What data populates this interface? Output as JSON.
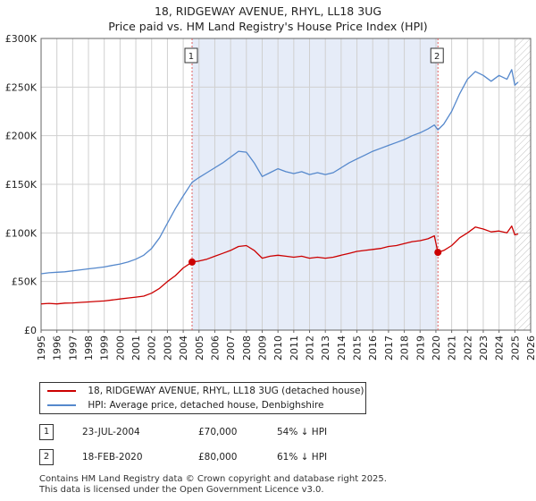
{
  "chart_data": {
    "type": "line",
    "title": "18, RIDGEWAY AVENUE, RHYL, LL18 3UG",
    "subtitle": "Price paid vs. HM Land Registry's House Price Index (HPI)",
    "xlim": [
      1995,
      2026
    ],
    "ylim": [
      0,
      300000
    ],
    "x_ticks": [
      "1995",
      "1996",
      "1997",
      "1998",
      "1999",
      "2000",
      "2001",
      "2002",
      "2003",
      "2004",
      "2005",
      "2006",
      "2007",
      "2008",
      "2009",
      "2010",
      "2011",
      "2012",
      "2013",
      "2014",
      "2015",
      "2016",
      "2017",
      "2018",
      "2019",
      "2020",
      "2021",
      "2022",
      "2023",
      "2024",
      "2025",
      "2026"
    ],
    "y_ticks": [
      {
        "value": 0,
        "label": "£0"
      },
      {
        "value": 50000,
        "label": "£50K"
      },
      {
        "value": 100000,
        "label": "£100K"
      },
      {
        "value": 150000,
        "label": "£150K"
      },
      {
        "value": 200000,
        "label": "£200K"
      },
      {
        "value": 250000,
        "label": "£250K"
      },
      {
        "value": 300000,
        "label": "£300K"
      }
    ],
    "grid": true,
    "shaded_span": [
      2004.56,
      2020.13
    ],
    "forecast_hatch_from": 2025.0,
    "series": [
      {
        "name": "18, RIDGEWAY AVENUE, RHYL, LL18 3UG (detached house)",
        "color": "#cc0000",
        "x": [
          1995,
          1995.5,
          1996,
          1996.5,
          1997,
          1997.5,
          1998,
          1998.5,
          1999,
          1999.5,
          2000,
          2000.5,
          2001,
          2001.5,
          2002,
          2002.5,
          2003,
          2003.5,
          2004,
          2004.56,
          2005,
          2005.5,
          2006,
          2006.5,
          2007,
          2007.5,
          2008,
          2008.5,
          2009,
          2009.5,
          2010,
          2010.5,
          2011,
          2011.5,
          2012,
          2012.5,
          2013,
          2013.5,
          2014,
          2014.5,
          2015,
          2015.5,
          2016,
          2016.5,
          2017,
          2017.5,
          2018,
          2018.5,
          2019,
          2019.5,
          2019.9,
          2020.13,
          2020.5,
          2021,
          2021.5,
          2022,
          2022.5,
          2023,
          2023.5,
          2024,
          2024.5,
          2024.8,
          2025,
          2025.2
        ],
        "values": [
          27000,
          27500,
          27000,
          27800,
          28000,
          28500,
          29000,
          29500,
          30000,
          31000,
          32000,
          33000,
          34000,
          35000,
          38000,
          43000,
          50000,
          56000,
          64000,
          70000,
          71000,
          73000,
          76000,
          79000,
          82000,
          86000,
          87000,
          82000,
          74000,
          76000,
          77000,
          76000,
          75000,
          76000,
          74000,
          75000,
          74000,
          75000,
          77000,
          79000,
          81000,
          82000,
          83000,
          84000,
          86000,
          87000,
          89000,
          91000,
          92000,
          94000,
          97000,
          80000,
          82000,
          87000,
          95000,
          100000,
          106000,
          104000,
          101000,
          102000,
          100000,
          107000,
          98000,
          99000
        ]
      },
      {
        "name": "HPI: Average price, detached house, Denbighshire",
        "color": "#5588cc",
        "x": [
          1995,
          1995.5,
          1996,
          1996.5,
          1997,
          1997.5,
          1998,
          1998.5,
          1999,
          1999.5,
          2000,
          2000.5,
          2001,
          2001.5,
          2002,
          2002.5,
          2003,
          2003.5,
          2004,
          2004.56,
          2005,
          2005.5,
          2006,
          2006.5,
          2007,
          2007.5,
          2008,
          2008.5,
          2009,
          2009.5,
          2010,
          2010.5,
          2011,
          2011.5,
          2012,
          2012.5,
          2013,
          2013.5,
          2014,
          2014.5,
          2015,
          2015.5,
          2016,
          2016.5,
          2017,
          2017.5,
          2018,
          2018.5,
          2019,
          2019.5,
          2019.9,
          2020.13,
          2020.5,
          2021,
          2021.5,
          2022,
          2022.5,
          2023,
          2023.5,
          2024,
          2024.5,
          2024.8,
          2025,
          2025.2
        ],
        "values": [
          58000,
          59000,
          59500,
          60000,
          61000,
          62000,
          63000,
          64000,
          65000,
          66500,
          68000,
          70000,
          73000,
          77000,
          84000,
          95000,
          110000,
          125000,
          138000,
          152000,
          157000,
          162000,
          167000,
          172000,
          178000,
          184000,
          183000,
          172000,
          158000,
          162000,
          166000,
          163000,
          161000,
          163000,
          160000,
          162000,
          160000,
          162000,
          167000,
          172000,
          176000,
          180000,
          184000,
          187000,
          190000,
          193000,
          196000,
          200000,
          203000,
          207000,
          211000,
          206000,
          212000,
          225000,
          243000,
          258000,
          266000,
          262000,
          256000,
          262000,
          258000,
          268000,
          252000,
          255000
        ]
      }
    ],
    "annotations": [
      {
        "label": "1",
        "x": 2004.56,
        "value": 70000
      },
      {
        "label": "2",
        "x": 2020.13,
        "value": 80000
      }
    ]
  },
  "legend": {
    "items": [
      {
        "label": "18, RIDGEWAY AVENUE, RHYL, LL18 3UG (detached house)",
        "color": "#cc0000"
      },
      {
        "label": "HPI: Average price, detached house, Denbighshire",
        "color": "#5588cc"
      }
    ]
  },
  "transactions": [
    {
      "marker": "1",
      "date": "23-JUL-2004",
      "price": "£70,000",
      "hpi": "54% ↓ HPI"
    },
    {
      "marker": "2",
      "date": "18-FEB-2020",
      "price": "£80,000",
      "hpi": "61% ↓ HPI"
    }
  ],
  "footer": {
    "line1": "Contains HM Land Registry data © Crown copyright and database right 2025.",
    "line2": "This data is licensed under the Open Government Licence v3.0."
  }
}
